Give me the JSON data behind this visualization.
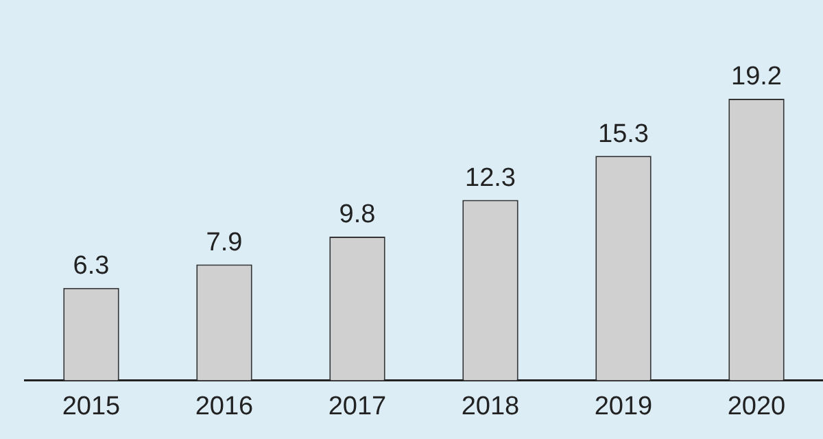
{
  "chart_data": {
    "type": "bar",
    "categories": [
      "2015",
      "2016",
      "2017",
      "2018",
      "2019",
      "2020"
    ],
    "values": [
      6.3,
      7.9,
      9.8,
      12.3,
      15.3,
      19.2
    ],
    "color": "#d0d0d0",
    "data_labels": true,
    "grid": false,
    "legend": false
  }
}
